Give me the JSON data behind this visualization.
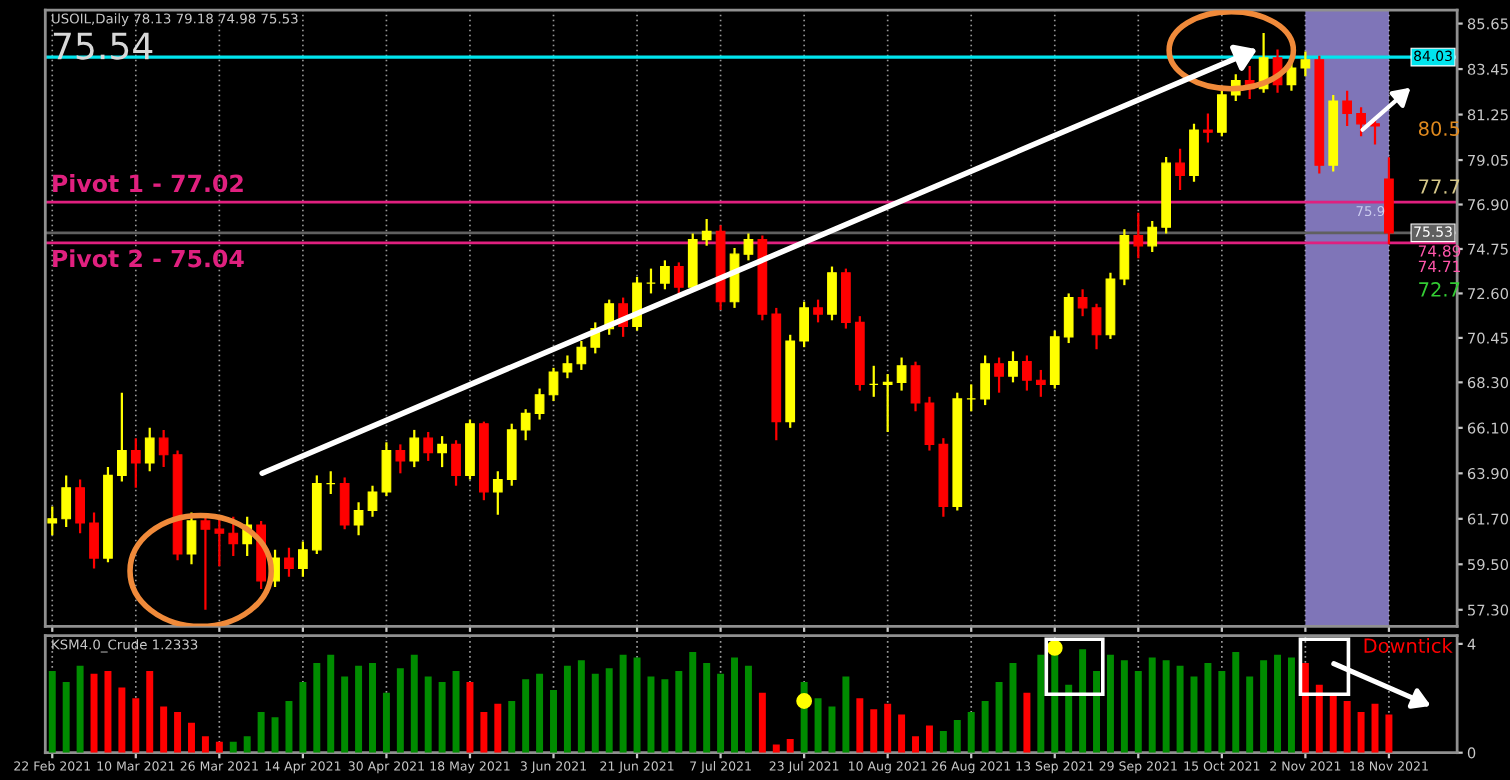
{
  "chart_data": [
    {
      "type": "candlestick",
      "categories": [
        "22 Feb 2021",
        null,
        null,
        null,
        null,
        null,
        "10 Mar 2021",
        null,
        null,
        null,
        null,
        null,
        "26 Mar 2021",
        null,
        null,
        null,
        null,
        null,
        "14 Apr 2021",
        null,
        null,
        null,
        null,
        null,
        "30 Apr 2021",
        null,
        null,
        null,
        null,
        null,
        "18 May 2021",
        null,
        null,
        null,
        null,
        null,
        "3 Jun 2021",
        null,
        null,
        null,
        null,
        null,
        "21 Jun 2021",
        null,
        null,
        null,
        null,
        null,
        "7 Jul 2021",
        null,
        null,
        null,
        null,
        null,
        "23 Jul 2021",
        null,
        null,
        null,
        null,
        null,
        "10 Aug 2021",
        null,
        null,
        null,
        null,
        null,
        "26 Aug 2021",
        null,
        null,
        null,
        null,
        null,
        "13 Sep 2021",
        null,
        null,
        null,
        null,
        null,
        "29 Sep 2021",
        null,
        null,
        null,
        null,
        null,
        "15 Oct 2021",
        null,
        null,
        null,
        null,
        null,
        "2 Nov 2021",
        null,
        null,
        null,
        null,
        null,
        "18 Nov 2021"
      ],
      "ohlc": [
        [
          61.5,
          62.3,
          60.9,
          61.7
        ],
        [
          61.7,
          63.8,
          61.3,
          63.2
        ],
        [
          63.2,
          63.6,
          61.0,
          61.5
        ],
        [
          61.5,
          62.0,
          59.3,
          59.8
        ],
        [
          59.8,
          64.2,
          59.6,
          63.8
        ],
        [
          63.8,
          67.8,
          63.5,
          65.0
        ],
        [
          65.0,
          65.6,
          63.2,
          64.4
        ],
        [
          64.4,
          66.1,
          64.0,
          65.6
        ],
        [
          65.6,
          66.0,
          64.2,
          64.8
        ],
        [
          64.8,
          65.0,
          59.7,
          60.0
        ],
        [
          60.0,
          62.0,
          59.5,
          61.6
        ],
        [
          61.6,
          61.9,
          57.3,
          61.2
        ],
        [
          61.2,
          61.7,
          59.4,
          61.0
        ],
        [
          61.0,
          61.8,
          59.9,
          60.5
        ],
        [
          60.5,
          61.8,
          59.9,
          61.4
        ],
        [
          61.4,
          61.6,
          58.3,
          58.7
        ],
        [
          58.7,
          60.2,
          58.4,
          59.8
        ],
        [
          59.8,
          60.3,
          58.9,
          59.3
        ],
        [
          59.3,
          60.6,
          58.9,
          60.2
        ],
        [
          60.2,
          63.8,
          60.0,
          63.4
        ],
        [
          63.4,
          64.0,
          62.9,
          63.4
        ],
        [
          63.4,
          63.7,
          61.2,
          61.4
        ],
        [
          61.4,
          62.5,
          60.9,
          62.1
        ],
        [
          62.1,
          63.3,
          61.8,
          63.0
        ],
        [
          63.0,
          65.4,
          62.8,
          65.0
        ],
        [
          65.0,
          65.3,
          63.9,
          64.5
        ],
        [
          64.5,
          66.0,
          64.2,
          65.6
        ],
        [
          65.6,
          65.9,
          64.5,
          64.9
        ],
        [
          64.9,
          65.7,
          64.2,
          65.3
        ],
        [
          65.3,
          65.5,
          63.3,
          63.8
        ],
        [
          63.8,
          66.5,
          63.6,
          66.3
        ],
        [
          66.3,
          66.4,
          62.6,
          63.0
        ],
        [
          63.0,
          64.0,
          61.9,
          63.6
        ],
        [
          63.6,
          66.3,
          63.3,
          66.0
        ],
        [
          66.0,
          67.0,
          65.5,
          66.8
        ],
        [
          66.8,
          68.0,
          66.5,
          67.7
        ],
        [
          67.7,
          69.0,
          67.4,
          68.8
        ],
        [
          68.8,
          69.6,
          68.5,
          69.2
        ],
        [
          69.2,
          70.3,
          68.9,
          70.0
        ],
        [
          70.0,
          71.2,
          69.7,
          70.9
        ],
        [
          70.9,
          72.3,
          70.6,
          72.1
        ],
        [
          72.1,
          72.4,
          70.5,
          71.0
        ],
        [
          71.0,
          73.4,
          70.8,
          73.1
        ],
        [
          73.1,
          73.8,
          72.6,
          73.1
        ],
        [
          73.1,
          74.2,
          72.8,
          73.9
        ],
        [
          73.9,
          74.1,
          72.4,
          72.9
        ],
        [
          72.9,
          75.5,
          72.7,
          75.2
        ],
        [
          75.2,
          76.2,
          74.9,
          75.6
        ],
        [
          75.6,
          75.9,
          71.8,
          72.2
        ],
        [
          72.2,
          74.8,
          71.9,
          74.5
        ],
        [
          74.5,
          75.5,
          74.2,
          75.2
        ],
        [
          75.2,
          75.4,
          71.3,
          71.6
        ],
        [
          71.6,
          71.9,
          65.5,
          66.4
        ],
        [
          66.4,
          70.6,
          66.1,
          70.3
        ],
        [
          70.3,
          72.2,
          70.0,
          71.9
        ],
        [
          71.9,
          72.3,
          71.2,
          71.6
        ],
        [
          71.6,
          73.9,
          71.3,
          73.6
        ],
        [
          73.6,
          73.8,
          70.9,
          71.2
        ],
        [
          71.2,
          71.5,
          67.9,
          68.2
        ],
        [
          68.2,
          69.1,
          67.6,
          68.2
        ],
        [
          68.2,
          68.7,
          65.9,
          68.3
        ],
        [
          68.3,
          69.5,
          67.9,
          69.1
        ],
        [
          69.1,
          69.3,
          66.9,
          67.3
        ],
        [
          67.3,
          67.6,
          65.0,
          65.3
        ],
        [
          65.3,
          65.6,
          61.8,
          62.3
        ],
        [
          62.3,
          67.8,
          62.1,
          67.5
        ],
        [
          67.5,
          68.2,
          66.9,
          67.5
        ],
        [
          67.5,
          69.6,
          67.2,
          69.2
        ],
        [
          69.2,
          69.5,
          67.8,
          68.6
        ],
        [
          68.6,
          69.8,
          68.3,
          69.3
        ],
        [
          69.3,
          69.6,
          67.9,
          68.4
        ],
        [
          68.4,
          68.9,
          67.6,
          68.2
        ],
        [
          68.2,
          70.8,
          68.0,
          70.5
        ],
        [
          70.5,
          72.6,
          70.2,
          72.4
        ],
        [
          72.4,
          72.8,
          71.5,
          71.9
        ],
        [
          71.9,
          72.1,
          69.9,
          70.6
        ],
        [
          70.6,
          73.6,
          70.4,
          73.3
        ],
        [
          73.3,
          75.7,
          73.0,
          75.4
        ],
        [
          75.4,
          76.5,
          74.3,
          74.9
        ],
        [
          74.9,
          76.1,
          74.6,
          75.8
        ],
        [
          75.8,
          79.2,
          75.5,
          78.9
        ],
        [
          78.9,
          79.6,
          77.6,
          78.3
        ],
        [
          78.3,
          80.8,
          78.0,
          80.5
        ],
        [
          80.5,
          81.3,
          79.9,
          80.4
        ],
        [
          80.4,
          82.4,
          80.2,
          82.2
        ],
        [
          82.2,
          83.2,
          81.9,
          82.9
        ],
        [
          82.9,
          83.6,
          82.0,
          82.5
        ],
        [
          82.5,
          85.2,
          82.3,
          84.0
        ],
        [
          84.0,
          84.4,
          82.3,
          82.7
        ],
        [
          82.7,
          83.8,
          82.4,
          83.5
        ],
        [
          83.5,
          84.3,
          83.1,
          83.9
        ],
        [
          83.9,
          84.1,
          78.4,
          78.8
        ],
        [
          78.8,
          82.2,
          78.5,
          81.9
        ],
        [
          81.9,
          82.4,
          80.7,
          81.3
        ],
        [
          81.3,
          81.6,
          80.2,
          80.8
        ],
        [
          80.8,
          81.1,
          79.8,
          80.7
        ],
        [
          78.13,
          79.18,
          74.98,
          75.53
        ]
      ],
      "colors": [
        "#ffff00",
        "#ffff00",
        "#ff0000",
        "#ff0000",
        "#ffff00",
        "#ffff00",
        "#ff0000",
        "#ffff00",
        "#ff0000",
        "#ff0000",
        "#ffff00",
        "#ff0000",
        "#ff0000",
        "#ff0000",
        "#ffff00",
        "#ff0000",
        "#ffff00",
        "#ff0000",
        "#ffff00",
        "#ffff00",
        "#ffff00",
        "#ff0000",
        "#ffff00",
        "#ffff00",
        "#ffff00",
        "#ff0000",
        "#ffff00",
        "#ff0000",
        "#ffff00",
        "#ff0000",
        "#ffff00",
        "#ff0000",
        "#ffff00",
        "#ffff00",
        "#ffff00",
        "#ffff00",
        "#ffff00",
        "#ffff00",
        "#ffff00",
        "#ffff00",
        "#ffff00",
        "#ff0000",
        "#ffff00",
        "#ffff00",
        "#ffff00",
        "#ff0000",
        "#ffff00",
        "#ffff00",
        "#ff0000",
        "#ffff00",
        "#ffff00",
        "#ff0000",
        "#ff0000",
        "#ffff00",
        "#ffff00",
        "#ff0000",
        "#ffff00",
        "#ff0000",
        "#ff0000",
        "#ffff00",
        "#ffff00",
        "#ffff00",
        "#ff0000",
        "#ff0000",
        "#ff0000",
        "#ffff00",
        "#ffff00",
        "#ffff00",
        "#ff0000",
        "#ffff00",
        "#ff0000",
        "#ff0000",
        "#ffff00",
        "#ffff00",
        "#ff0000",
        "#ff0000",
        "#ffff00",
        "#ffff00",
        "#ff0000",
        "#ffff00",
        "#ffff00",
        "#ff0000",
        "#ffff00",
        "#ff0000",
        "#ffff00",
        "#ffff00",
        "#ff0000",
        "#ffff00",
        "#ff0000",
        "#ffff00",
        "#ffff00",
        "#ff0000",
        "#ffff00",
        "#ff0000",
        "#ff0000",
        "#ff0000",
        "#ff0000"
      ],
      "ylim": [
        56.5,
        86.3
      ],
      "yticks": [
        {
          "value": 57.3,
          "label": "57.30"
        },
        {
          "value": 59.5,
          "label": "59.50"
        },
        {
          "value": 61.7,
          "label": "61.70"
        },
        {
          "value": 63.9,
          "label": "63.90"
        },
        {
          "value": 66.1,
          "label": "66.10"
        },
        {
          "value": 68.3,
          "label": "68.30"
        },
        70.45,
        {
          "value": 72.6,
          "label": "72.60"
        },
        74.75,
        {
          "value": 76.9,
          "label": "76.90"
        },
        79.05,
        81.25,
        83.45,
        85.65
      ],
      "tick_labels": "y",
      "grid": "x",
      "ref_lines": [
        {
          "axis": "y",
          "value": 84.03,
          "label": "84.03",
          "color": "#00e5ee"
        },
        {
          "axis": "y",
          "value": 77.02,
          "label": "Pivot 1 - 77.02",
          "color": "#e0207f"
        },
        {
          "axis": "y",
          "value": 75.04,
          "label": "Pivot 2 - 75.04",
          "color": "#e0207f"
        },
        {
          "axis": "y",
          "value": 75.53,
          "label": "75.53",
          "color": "#606060"
        }
      ],
      "bands": [
        {
          "axis": "x",
          "from": "2 Nov 2021",
          "to": "18 Nov 2021",
          "color": "#a99cf5"
        }
      ],
      "annotations": [
        "USOIL,Daily 78.13 79.18 74.98 75.53",
        "75.54",
        "80.5",
        "77.7",
        "74.89",
        "74.71",
        "72.7",
        "75.9"
      ]
    },
    {
      "type": "bar",
      "categories": [
        "22 Feb 2021",
        null,
        null,
        null,
        null,
        null,
        "10 Mar 2021",
        null,
        null,
        null,
        null,
        null,
        "26 Mar 2021",
        null,
        null,
        null,
        null,
        null,
        "14 Apr 2021",
        null,
        null,
        null,
        null,
        null,
        "30 Apr 2021",
        null,
        null,
        null,
        null,
        null,
        "18 May 2021",
        null,
        null,
        null,
        null,
        null,
        "3 Jun 2021",
        null,
        null,
        null,
        null,
        null,
        "21 Jun 2021",
        null,
        null,
        null,
        null,
        null,
        "7 Jul 2021",
        null,
        null,
        null,
        null,
        null,
        "23 Jul 2021",
        null,
        null,
        null,
        null,
        null,
        "10 Aug 2021",
        null,
        null,
        null,
        null,
        null,
        "26 Aug 2021",
        null,
        null,
        null,
        null,
        null,
        "13 Sep 2021",
        null,
        null,
        null,
        null,
        null,
        "29 Sep 2021",
        null,
        null,
        null,
        null,
        null,
        "15 Oct 2021",
        null,
        null,
        null,
        null,
        null,
        "2 Nov 2021",
        null,
        null,
        null,
        null,
        null,
        "18 Nov 2021"
      ],
      "series": [
        {
          "type": "bar",
          "values": [
            3.0,
            2.6,
            3.2,
            2.9,
            3.0,
            2.4,
            2.0,
            3.0,
            1.7,
            1.5,
            1.1,
            0.6,
            0.4,
            0.4,
            0.6,
            1.5,
            1.3,
            1.9,
            2.6,
            3.3,
            3.6,
            2.8,
            3.2,
            3.3,
            2.2,
            3.1,
            3.6,
            2.8,
            2.6,
            3.0,
            2.6,
            1.5,
            1.8,
            1.9,
            2.7,
            2.9,
            2.3,
            3.2,
            3.4,
            2.9,
            3.1,
            3.6,
            3.5,
            2.8,
            2.7,
            3.0,
            3.7,
            3.3,
            2.9,
            3.5,
            3.2,
            2.2,
            0.3,
            0.5,
            2.6,
            2.0,
            1.7,
            2.8,
            2.0,
            1.6,
            1.8,
            1.4,
            0.6,
            1.0,
            0.8,
            1.2,
            1.5,
            1.9,
            2.6,
            3.3,
            2.2,
            3.6,
            3.8,
            2.5,
            3.8,
            3.0,
            3.6,
            3.4,
            3.0,
            3.5,
            3.4,
            3.2,
            2.8,
            3.3,
            3.0,
            3.7,
            2.8,
            3.4,
            3.6,
            3.5,
            3.3,
            2.5,
            2.1,
            1.9,
            1.5,
            1.8,
            1.4
          ],
          "colors": [
            "#008c00",
            "#008c00",
            "#008c00",
            "#ff0000",
            "#ff0000",
            "#ff0000",
            "#ff0000",
            "#ff0000",
            "#ff0000",
            "#ff0000",
            "#ff0000",
            "#ff0000",
            "#ff0000",
            "#008c00",
            "#008c00",
            "#008c00",
            "#008c00",
            "#008c00",
            "#008c00",
            "#008c00",
            "#008c00",
            "#008c00",
            "#008c00",
            "#008c00",
            "#008c00",
            "#008c00",
            "#008c00",
            "#008c00",
            "#008c00",
            "#008c00",
            "#ff0000",
            "#ff0000",
            "#ff0000",
            "#008c00",
            "#008c00",
            "#008c00",
            "#008c00",
            "#008c00",
            "#008c00",
            "#008c00",
            "#008c00",
            "#008c00",
            "#008c00",
            "#008c00",
            "#008c00",
            "#008c00",
            "#008c00",
            "#008c00",
            "#008c00",
            "#008c00",
            "#008c00",
            "#ff0000",
            "#ff0000",
            "#ff0000",
            "#008c00",
            "#008c00",
            "#008c00",
            "#008c00",
            "#ff0000",
            "#ff0000",
            "#ff0000",
            "#ff0000",
            "#ff0000",
            "#ff0000",
            "#008c00",
            "#008c00",
            "#008c00",
            "#008c00",
            "#008c00",
            "#008c00",
            "#ff0000",
            "#008c00",
            "#008c00",
            "#008c00",
            "#008c00",
            "#008c00",
            "#008c00",
            "#008c00",
            "#008c00",
            "#008c00",
            "#008c00",
            "#008c00",
            "#008c00",
            "#008c00",
            "#008c00",
            "#008c00",
            "#008c00",
            "#008c00",
            "#008c00",
            "#008c00",
            "#ff0000",
            "#ff0000",
            "#ff0000",
            "#ff0000",
            "#ff0000",
            "#ff0000",
            "#ff0000"
          ]
        },
        {
          "type": "scatter",
          "x": [
            "23 Jul 2021",
            "13 Sep 2021"
          ],
          "values": [
            1.9,
            3.85
          ],
          "color": "#ffff00"
        }
      ],
      "marker": "circle",
      "ylim": [
        0,
        4.3
      ],
      "yticks": [
        0,
        4
      ],
      "grid": "x",
      "annotations": [
        "KSM4.0_Crude 1.2333",
        "Downtick"
      ]
    }
  ]
}
